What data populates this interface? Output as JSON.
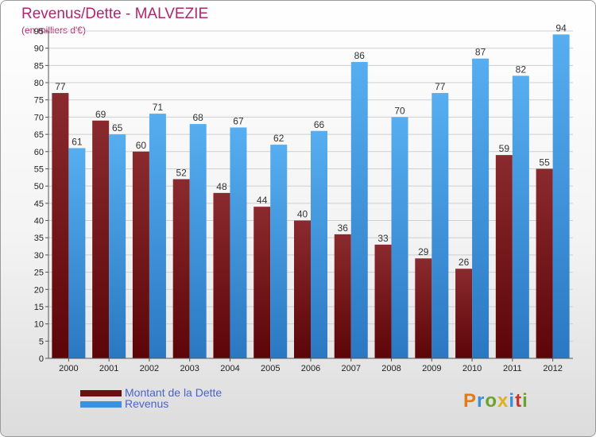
{
  "title": "Revenus/Dette - MALVEZIE",
  "subtitle": "(en milliers d'€)",
  "logo_text": "Proxiti",
  "colors": {
    "debt": "#7a1418",
    "revenue": "#3a8fd8",
    "title": "#b0266e",
    "legend_text": "#4a63c8"
  },
  "legend": [
    {
      "label": "Montant de la Dette",
      "color": "#6b0f12"
    },
    {
      "label": "Revenus",
      "color": "#3a92de"
    }
  ],
  "chart_data": {
    "type": "bar",
    "title": "Revenus/Dette - MALVEZIE",
    "subtitle": "(en milliers d'€)",
    "categories": [
      "2000",
      "2001",
      "2002",
      "2003",
      "2004",
      "2005",
      "2006",
      "2007",
      "2008",
      "2009",
      "2010",
      "2011",
      "2012"
    ],
    "series": [
      {
        "name": "Montant de la Dette",
        "values": [
          77,
          69,
          60,
          52,
          48,
          44,
          40,
          36,
          33,
          29,
          26,
          59,
          55
        ]
      },
      {
        "name": "Revenus",
        "values": [
          61,
          65,
          71,
          68,
          67,
          62,
          66,
          86,
          70,
          77,
          87,
          82,
          94
        ]
      }
    ],
    "ylim": [
      0,
      95
    ],
    "yticks": [
      0,
      5,
      10,
      15,
      20,
      25,
      30,
      35,
      40,
      45,
      50,
      55,
      60,
      65,
      70,
      75,
      80,
      85,
      90,
      95
    ],
    "grid": true,
    "legend_position": "bottom-left"
  }
}
